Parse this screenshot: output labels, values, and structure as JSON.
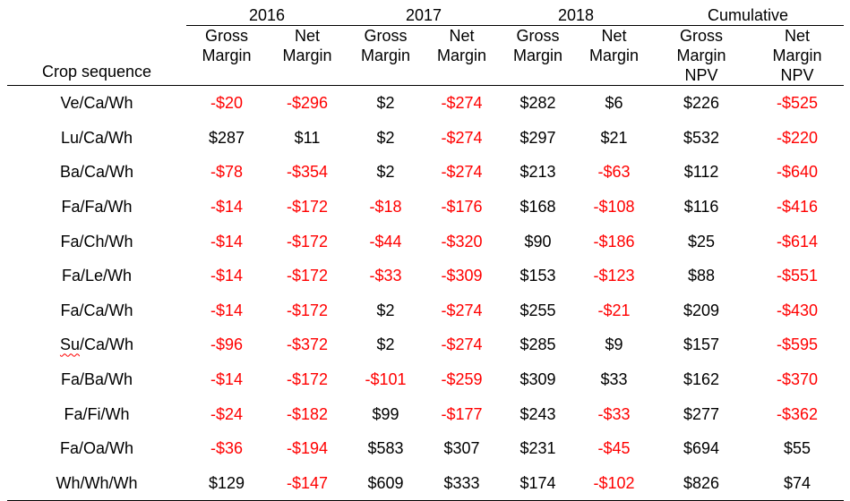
{
  "table": {
    "crop_header": "Crop sequence",
    "year_headers": [
      "2016",
      "2017",
      "2018",
      "Cumulative"
    ],
    "sub_headers": [
      [
        "Gross",
        "Margin"
      ],
      [
        "Net",
        "Margin"
      ],
      [
        "Gross",
        "Margin"
      ],
      [
        "Net",
        "Margin"
      ],
      [
        "Gross",
        "Margin"
      ],
      [
        "Net",
        "Margin"
      ],
      [
        "Gross",
        "Margin",
        "NPV"
      ],
      [
        "Net",
        "Margin",
        "NPV"
      ]
    ],
    "rows": [
      {
        "crop": "Ve/Ca/Wh",
        "values": [
          "-$20",
          "-$296",
          "$2",
          "-$274",
          "$282",
          "$6",
          "$226",
          "-$525"
        ]
      },
      {
        "crop": "Lu/Ca/Wh",
        "values": [
          "$287",
          "$11",
          "$2",
          "-$274",
          "$297",
          "$21",
          "$532",
          "-$220"
        ]
      },
      {
        "crop": "Ba/Ca/Wh",
        "values": [
          "-$78",
          "-$354",
          "$2",
          "-$274",
          "$213",
          "-$63",
          "$112",
          "-$640"
        ]
      },
      {
        "crop": "Fa/Fa/Wh",
        "values": [
          "-$14",
          "-$172",
          "-$18",
          "-$176",
          "$168",
          "-$108",
          "$116",
          "-$416"
        ]
      },
      {
        "crop": "Fa/Ch/Wh",
        "values": [
          "-$14",
          "-$172",
          "-$44",
          "-$320",
          "$90",
          "-$186",
          "$25",
          "-$614"
        ]
      },
      {
        "crop": "Fa/Le/Wh",
        "values": [
          "-$14",
          "-$172",
          "-$33",
          "-$309",
          "$153",
          "-$123",
          "$88",
          "-$551"
        ]
      },
      {
        "crop": "Fa/Ca/Wh",
        "values": [
          "-$14",
          "-$172",
          "$2",
          "-$274",
          "$255",
          "-$21",
          "$209",
          "-$430"
        ]
      },
      {
        "crop": "Su/Ca/Wh",
        "values": [
          "-$96",
          "-$372",
          "$2",
          "-$274",
          "$285",
          "$9",
          "$157",
          "-$595"
        ]
      },
      {
        "crop": "Fa/Ba/Wh",
        "values": [
          "-$14",
          "-$172",
          "-$101",
          "-$259",
          "$309",
          "$33",
          "$162",
          "-$370"
        ]
      },
      {
        "crop": "Fa/Fi/Wh",
        "values": [
          "-$24",
          "-$182",
          "$99",
          "-$177",
          "$243",
          "-$33",
          "$277",
          "-$362"
        ]
      },
      {
        "crop": "Fa/Oa/Wh",
        "values": [
          "-$36",
          "-$194",
          "$583",
          "$307",
          "$231",
          "-$45",
          "$694",
          "$55"
        ]
      },
      {
        "crop": "Wh/Wh/Wh",
        "values": [
          "$129",
          "-$147",
          "$609",
          "$333",
          "$174",
          "-$102",
          "$826",
          "$74"
        ]
      }
    ],
    "colors": {
      "negative": "#ff0000",
      "positive": "#000000"
    }
  }
}
